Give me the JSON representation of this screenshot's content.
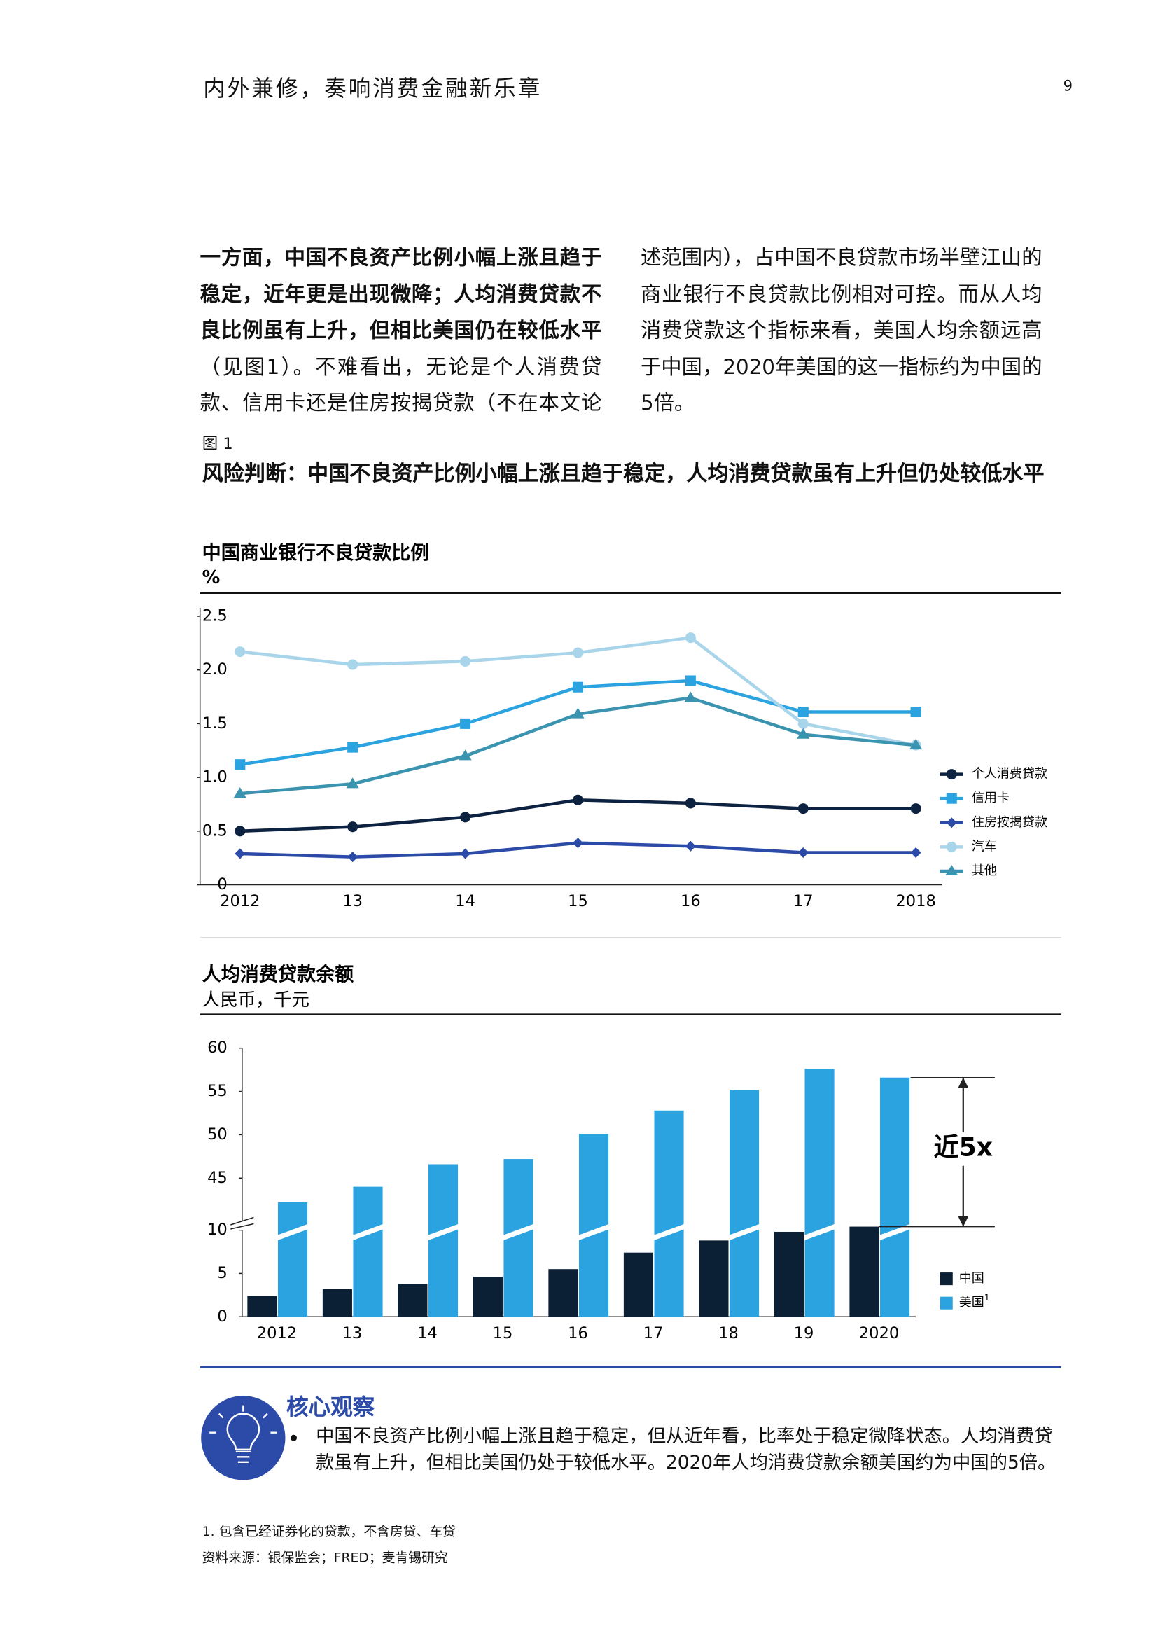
{
  "header": {
    "title": "内外兼修，奏响消费金融新乐章",
    "page_number": "9"
  },
  "intro": {
    "lead": "一方面，中国不良资产比例小幅上涨且趋于稳定，近年更是出现微降；人均消费贷款不良比例虽有上升，但相比美国仍在较低水平",
    "text": "（见图1）。不难看出，无论是个人消费贷款、信用卡还是住房按揭贷款（不在本文论述范围内），占中国不良贷款市场半壁江山的商业银行不良贷款比例相对可控。而从人均消费贷款这个指标来看，美国人均余额远高于中国，2020年美国的这一指标约为中国的5倍。"
  },
  "figure": {
    "label": "图 1",
    "title": "风险判断：中国不良资产比例小幅上涨且趋于稳定，人均消费贷款虽有上升但仍处较低水平"
  },
  "chart_data": [
    {
      "type": "line",
      "title": "中国商业银行不良贷款比例",
      "y_label": "%",
      "categories": [
        "2012",
        "13",
        "14",
        "15",
        "16",
        "17",
        "2018"
      ],
      "ylim": [
        0,
        2.5
      ],
      "yticks": [
        0,
        0.5,
        {
          "value": 1,
          "label": "1.0"
        },
        1.5,
        {
          "value": 2,
          "label": "2.0"
        },
        2.5
      ],
      "legend": "right",
      "series": [
        {
          "name": "个人消费贷款",
          "color": "#0d2240",
          "marker": "circle",
          "values": [
            0.5,
            0.54,
            0.63,
            0.79,
            0.76,
            0.71,
            0.71
          ]
        },
        {
          "name": "信用卡",
          "color": "#2aa3e0",
          "marker": "square",
          "values": [
            1.12,
            1.28,
            1.5,
            1.84,
            1.9,
            1.61,
            1.61
          ]
        },
        {
          "name": "住房按揭贷款",
          "color": "#2c4aa8",
          "marker": "diamond",
          "values": [
            0.29,
            0.26,
            0.29,
            0.39,
            0.36,
            0.3,
            0.3
          ]
        },
        {
          "name": "汽车",
          "color": "#a9d5ea",
          "marker": "circle",
          "values": [
            2.17,
            2.05,
            2.08,
            2.16,
            2.3,
            1.5,
            1.3
          ]
        },
        {
          "name": "其他",
          "color": "#3a94b0",
          "marker": "triangle",
          "values": [
            0.85,
            0.94,
            1.2,
            1.59,
            1.74,
            1.4,
            1.3
          ]
        }
      ]
    },
    {
      "type": "bar",
      "title": "人均消费贷款余额",
      "y_label": "人民币，千元",
      "categories": [
        "2012",
        "13",
        "14",
        "15",
        "16",
        "17",
        "18",
        "19",
        "2020"
      ],
      "ylim": [
        0,
        60
      ],
      "axis_break": [
        10,
        39
      ],
      "yticks": [
        0,
        5,
        10,
        45,
        50,
        55,
        60
      ],
      "legend": "right",
      "annotation": "近5x",
      "series": [
        {
          "name": "中国",
          "color": "#0b1f35",
          "values": [
            2.4,
            3.2,
            3.8,
            4.6,
            5.5,
            7.4,
            8.8,
            9.8,
            10.4
          ]
        },
        {
          "name": "美国",
          "note": "1",
          "color": "#2aa3e0",
          "values": [
            42.2,
            44,
            46.6,
            47.2,
            50.1,
            52.8,
            55.2,
            57.6,
            56.6
          ]
        }
      ]
    }
  ],
  "insight": {
    "heading": "核心观察",
    "bullets": [
      "中国不良资产比例小幅上涨且趋于稳定，但从近年看，比率处于稳定微降状态。人均消费贷款虽有上升，但相比美国仍处于较低水平。2020年人均消费贷款余额美国约为中国的5倍。"
    ]
  },
  "footnotes": [
    "1.  包含已经证券化的贷款，不含房贷、车贷"
  ],
  "source": "资料来源：银保监会；FRED；麦肯锡研究"
}
